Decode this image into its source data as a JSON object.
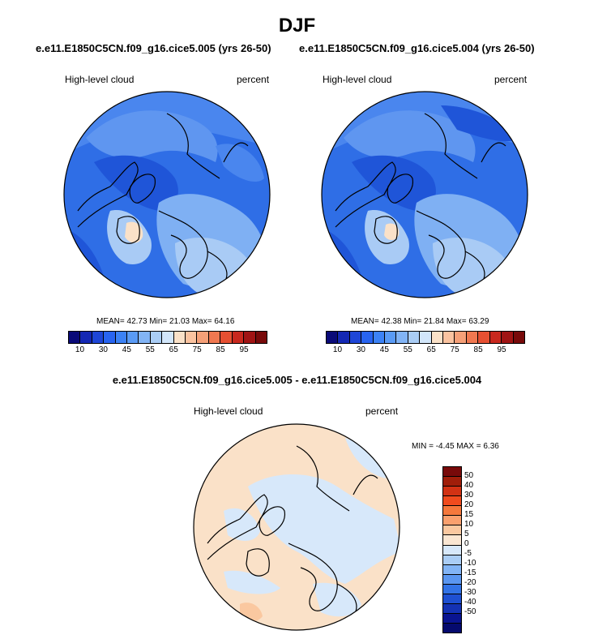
{
  "page": {
    "title": "DJF",
    "top_subtitle_left": "e.e11.E1850C5CN.f09_g16.cice5.005 (yrs 26-50)",
    "top_subtitle_right": "e.e11.E1850C5CN.f09_g16.cice5.004 (yrs 26-50)",
    "diff_subtitle": "e.e11.E1850C5CN.f09_g16.cice5.005 - e.e11.E1850C5CN.f09_g16.cice5.004"
  },
  "panels": {
    "left": {
      "variable": "High-level cloud",
      "units": "percent",
      "stats": "MEAN=  42.73  Min=  21.03  Max=  64.16",
      "mean": 42.73,
      "min": 21.03,
      "max": 64.16
    },
    "right": {
      "variable": "High-level cloud",
      "units": "percent",
      "stats": "MEAN=  42.38  Min=  21.84  Max=  63.29",
      "mean": 42.38,
      "min": 21.84,
      "max": 63.29
    },
    "diff": {
      "variable": "High-level cloud",
      "units": "percent",
      "stats": "MIN =  -4.45 MAX =   6.36",
      "min": -4.45,
      "max": 6.36
    }
  },
  "colorbars": {
    "abs": {
      "colors": [
        "#0a0a78",
        "#1428b4",
        "#1e46d7",
        "#2864f0",
        "#3c82f5",
        "#5a9bf5",
        "#82b4f5",
        "#aacdf5",
        "#d2e6fa",
        "#fae1c8",
        "#fac3a0",
        "#f5a078",
        "#f07850",
        "#e65032",
        "#c8281e",
        "#a01414",
        "#780a0a"
      ],
      "tick_labels": [
        "10",
        "30",
        "45",
        "55",
        "65",
        "75",
        "85",
        "95"
      ]
    },
    "diff": {
      "colors": [
        "#780a0a",
        "#a01e0a",
        "#d23214",
        "#f04b1e",
        "#f5783c",
        "#faa06e",
        "#fac8a0",
        "#fae6d2",
        "#d7e8fa",
        "#aacdf5",
        "#82b4f5",
        "#5a96f0",
        "#3273e6",
        "#1e50d2",
        "#1432b4",
        "#0a1491",
        "#050a6e"
      ],
      "tick_labels": [
        "50",
        "40",
        "30",
        "20",
        "15",
        "10",
        "5",
        "0",
        "-5",
        "-10",
        "-15",
        "-20",
        "-30",
        "-40",
        "-50"
      ]
    }
  }
}
